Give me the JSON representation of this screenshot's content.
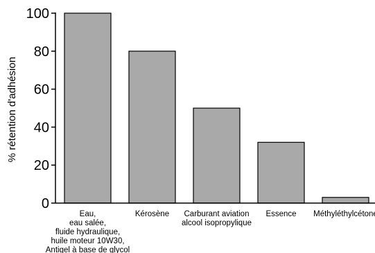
{
  "chart_data": {
    "type": "bar",
    "ylabel": "% rétention d'adhésion",
    "ylim": [
      0,
      100
    ],
    "yticks": [
      "0",
      "20",
      "40",
      "60",
      "80",
      "100"
    ],
    "grid": false,
    "bar_color": "#a9a9a9",
    "categories": [
      [
        "Eau,",
        "eau salée,",
        "fluide hydraulique,",
        "huile moteur 10W30,",
        "Antigel à base de glycol"
      ],
      [
        "Kérosène"
      ],
      [
        "Carburant aviation",
        "alcool isopropylique"
      ],
      [
        "Essence"
      ],
      [
        "Méthyléthylcétone"
      ]
    ],
    "values": [
      100,
      80,
      50,
      32,
      3
    ]
  }
}
